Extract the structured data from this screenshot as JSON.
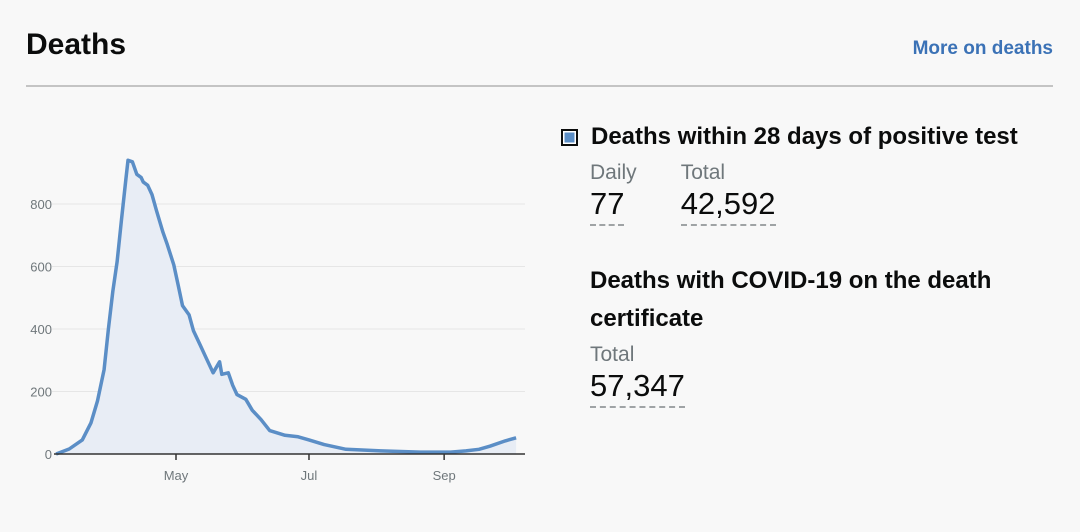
{
  "header": {
    "title": "Deaths",
    "more_link": "More on deaths"
  },
  "legend": {
    "series_label": "Deaths within 28 days of positive test",
    "daily_label": "Daily",
    "daily_value": "77",
    "total_label": "Total",
    "total_value": "42,592"
  },
  "certificate": {
    "title": "Deaths with COVID-19 on the death certificate",
    "total_label": "Total",
    "total_value": "57,347"
  },
  "colors": {
    "line": "#5b8ec6",
    "fill": "#e8edf5",
    "link": "#3b72b6"
  },
  "chart_data": {
    "type": "area",
    "title": "",
    "xlabel": "",
    "ylabel": "",
    "ylim": [
      0,
      950
    ],
    "yticks": [
      0,
      200,
      400,
      600,
      800
    ],
    "xticks": [
      {
        "label": "May",
        "date": "2020-05-01"
      },
      {
        "label": "Jul",
        "date": "2020-07-01"
      },
      {
        "label": "Sep",
        "date": "2020-09-01"
      }
    ],
    "grid": true,
    "x": [
      "2020-03-07",
      "2020-03-13",
      "2020-03-19",
      "2020-03-23",
      "2020-03-26",
      "2020-03-29",
      "2020-03-31",
      "2020-04-02",
      "2020-04-04",
      "2020-04-06",
      "2020-04-08",
      "2020-04-09",
      "2020-04-11",
      "2020-04-13",
      "2020-04-15",
      "2020-04-16",
      "2020-04-18",
      "2020-04-20",
      "2020-04-22",
      "2020-04-25",
      "2020-04-27",
      "2020-04-30",
      "2020-05-02",
      "2020-05-04",
      "2020-05-07",
      "2020-05-09",
      "2020-05-12",
      "2020-05-15",
      "2020-05-18",
      "2020-05-21",
      "2020-05-22",
      "2020-05-25",
      "2020-05-27",
      "2020-05-29",
      "2020-06-02",
      "2020-06-05",
      "2020-06-09",
      "2020-06-13",
      "2020-06-20",
      "2020-06-26",
      "2020-07-01",
      "2020-07-08",
      "2020-07-18",
      "2020-08-03",
      "2020-08-21",
      "2020-09-04",
      "2020-09-11",
      "2020-09-17",
      "2020-09-22",
      "2020-09-29",
      "2020-10-04"
    ],
    "values": [
      0,
      16,
      45,
      100,
      170,
      270,
      400,
      520,
      615,
      750,
      880,
      940,
      935,
      895,
      885,
      870,
      860,
      830,
      780,
      710,
      670,
      605,
      540,
      475,
      445,
      395,
      350,
      305,
      260,
      295,
      255,
      260,
      220,
      190,
      175,
      140,
      110,
      75,
      60,
      55,
      45,
      30,
      15,
      10,
      6,
      6,
      10,
      15,
      25,
      42,
      52
    ]
  }
}
